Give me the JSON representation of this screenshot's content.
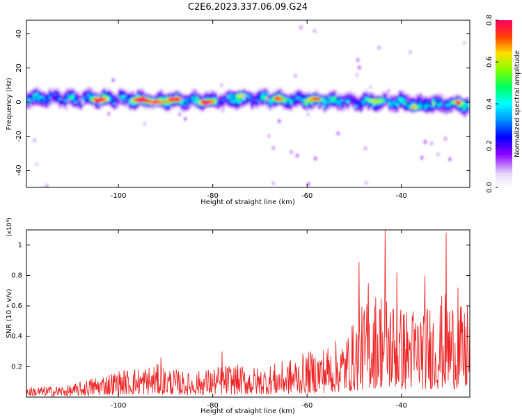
{
  "title": "C2E6.2023.337.06.09.G24",
  "chart_data": [
    {
      "type": "heatmap",
      "xlabel": "Height of straight line (km)",
      "ylabel": "Frequency (Hz)",
      "xlim": [
        -119.5,
        -25.5
      ],
      "ylim": [
        -50,
        48
      ],
      "xticks": [
        -100,
        -80,
        -60,
        -40
      ],
      "yticks": [
        40,
        20,
        0,
        -20,
        -40
      ],
      "colorbar": {
        "label": "Normalized spectral amplitude",
        "range": [
          0,
          0.8
        ],
        "ticks": [
          "0.8",
          "0.6",
          "0.4",
          "0.2",
          "0.0"
        ],
        "colormap": "rainbow"
      },
      "band_center_hz": [
        {
          "x": -119,
          "y": 2
        },
        {
          "x": -110,
          "y": 2
        },
        {
          "x": -100,
          "y": 2
        },
        {
          "x": -90,
          "y": 1
        },
        {
          "x": -80,
          "y": 1
        },
        {
          "x": -70,
          "y": 2
        },
        {
          "x": -60,
          "y": 1
        },
        {
          "x": -50,
          "y": 0
        },
        {
          "x": -40,
          "y": 0
        },
        {
          "x": -26,
          "y": -2
        }
      ],
      "band_halfwidth_hz": 4,
      "peaks": [
        {
          "x": -104,
          "y": 1.5,
          "amp": 0.78
        },
        {
          "x": -95,
          "y": 1.5,
          "amp": 0.8
        },
        {
          "x": -92,
          "y": 0,
          "amp": 0.75
        },
        {
          "x": -88,
          "y": 1.5,
          "amp": 0.7
        },
        {
          "x": -81,
          "y": 0,
          "amp": 0.8
        },
        {
          "x": -74,
          "y": 4,
          "amp": 0.45
        },
        {
          "x": -66,
          "y": 2,
          "amp": 0.5
        },
        {
          "x": -58,
          "y": 2,
          "amp": 0.55
        },
        {
          "x": -45,
          "y": 1,
          "amp": 0.45
        },
        {
          "x": -37,
          "y": -3,
          "amp": 0.5
        },
        {
          "x": -28,
          "y": 0,
          "amp": 0.45
        }
      ]
    },
    {
      "type": "line",
      "xlabel": "Height of straight line (km)",
      "ylabel": "SNR (10 * v/v)",
      "y_multiplier": "(x10⁴)",
      "xlim": [
        -119.5,
        -25.5
      ],
      "ylim": [
        0,
        1.1
      ],
      "xticks": [
        -100,
        -80,
        -60,
        -40
      ],
      "yticks": [
        1.0,
        0.8,
        0.6,
        0.4,
        0.2
      ],
      "color": "#ee2222",
      "envelope": [
        {
          "x": -119,
          "y": 0.07
        },
        {
          "x": -110,
          "y": 0.08
        },
        {
          "x": -105,
          "y": 0.14
        },
        {
          "x": -100,
          "y": 0.18
        },
        {
          "x": -92,
          "y": 0.22
        },
        {
          "x": -85,
          "y": 0.16
        },
        {
          "x": -77,
          "y": 0.22
        },
        {
          "x": -70,
          "y": 0.2
        },
        {
          "x": -64,
          "y": 0.25
        },
        {
          "x": -58,
          "y": 0.32
        },
        {
          "x": -52,
          "y": 0.4
        },
        {
          "x": -48,
          "y": 0.62
        },
        {
          "x": -44,
          "y": 0.75
        },
        {
          "x": -40,
          "y": 0.6
        },
        {
          "x": -35,
          "y": 0.62
        },
        {
          "x": -30,
          "y": 0.7
        },
        {
          "x": -26,
          "y": 0.55
        }
      ],
      "spikes": [
        {
          "x": -91,
          "y": 0.26
        },
        {
          "x": -78,
          "y": 0.3
        },
        {
          "x": -49,
          "y": 0.89
        },
        {
          "x": -47,
          "y": 0.75
        },
        {
          "x": -43.5,
          "y": 1.1
        },
        {
          "x": -41,
          "y": 0.82
        },
        {
          "x": -35,
          "y": 0.8
        },
        {
          "x": -30.5,
          "y": 1.08
        },
        {
          "x": -28,
          "y": 0.72
        },
        {
          "x": -26,
          "y": 0.6
        }
      ]
    }
  ]
}
